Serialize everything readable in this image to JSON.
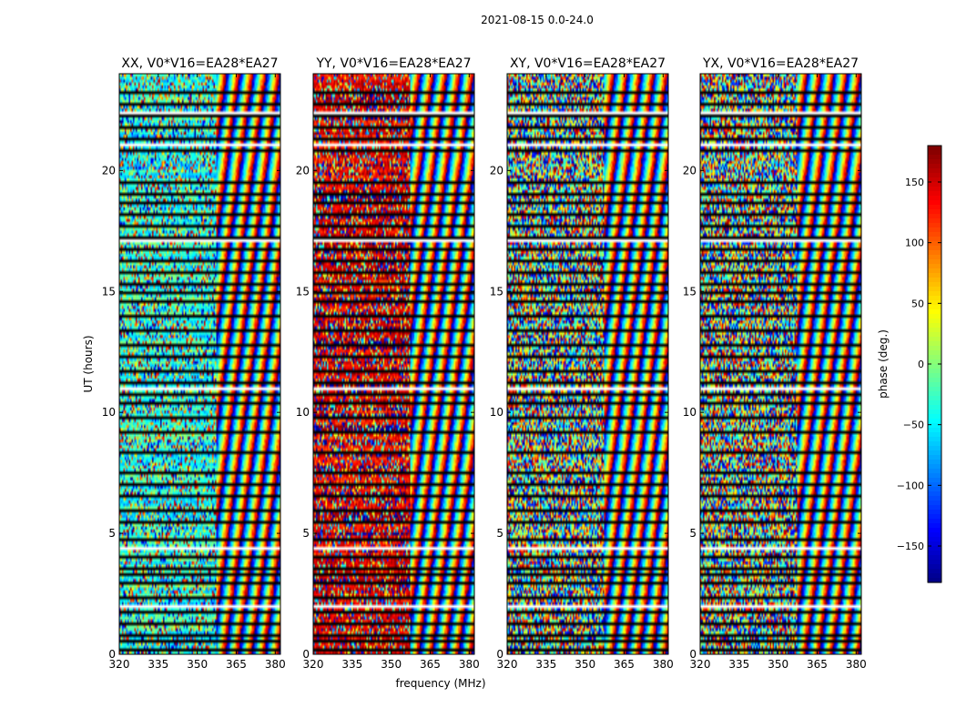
{
  "figure": {
    "suptitle": "2021-08-15 0.0-24.0"
  },
  "chart_data": {
    "type": "heatmap",
    "description_values": "per-panel waterfall of visibility phase vs frequency and time",
    "shared": {
      "xlabel": "frequency (MHz)",
      "ylabel": "UT (hours)",
      "xlim": [
        320,
        382
      ],
      "ylim": [
        0,
        24
      ],
      "xticks": [
        320,
        335,
        350,
        365,
        380
      ],
      "yticks": [
        0,
        5,
        10,
        15,
        20
      ]
    },
    "panels": [
      {
        "title": "XX, V0*V16=EA28*EA27",
        "pol": "XX",
        "bias_phase": -35,
        "coherence": 0.55
      },
      {
        "title": "YY, V0*V16=EA28*EA27",
        "pol": "YY",
        "bias_phase": 150,
        "coherence": 0.6
      },
      {
        "title": "XY, V0*V16=EA28*EA27",
        "pol": "XY",
        "bias_phase": 0,
        "coherence": 0.05
      },
      {
        "title": "YX, V0*V16=EA28*EA27",
        "pol": "YX",
        "bias_phase": 0,
        "coherence": 0.05
      }
    ],
    "colorbar": {
      "label": "phase (deg.)",
      "range": [
        -180,
        180
      ],
      "ticks": [
        -150,
        -100,
        -50,
        0,
        50,
        100,
        150
      ],
      "colormap": "jet"
    },
    "flagged_time_rows_hours": [
      0.2,
      0.55,
      0.9,
      1.3,
      1.75,
      2.1,
      2.45,
      3.0,
      3.35,
      3.65,
      4.1,
      4.8,
      5.5,
      6.05,
      6.6,
      7.1,
      7.55,
      8.4,
      9.2,
      9.85,
      10.4,
      10.85,
      11.3,
      11.8,
      12.4,
      12.9,
      13.4,
      14.05,
      14.6,
      15.05,
      15.4,
      15.8,
      16.3,
      16.8,
      17.25,
      17.75,
      18.2,
      18.75,
      19.1,
      19.6,
      20.85,
      21.4,
      21.85,
      22.3,
      22.8,
      23.3
    ],
    "white_gap_rows_hours": [
      2.0,
      4.4,
      11.1,
      17.2,
      21.1,
      22.5
    ]
  }
}
